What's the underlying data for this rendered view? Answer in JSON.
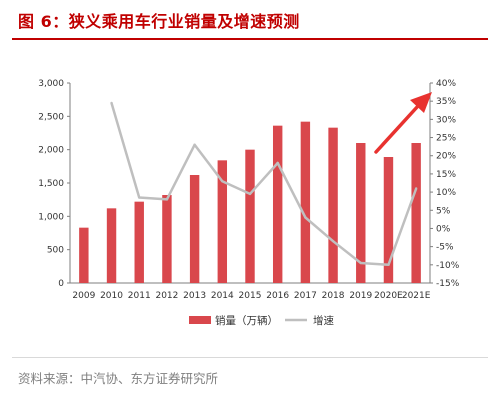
{
  "figure": {
    "title": "图 6：狭义乘用车行业销量及增速预测",
    "source": "资料来源：中汽协、东方证券研究所"
  },
  "colors": {
    "title": "#c00000",
    "bar": "#d9474c",
    "line": "#bfbfbf",
    "arrow": "#e8322f"
  },
  "chart_data": {
    "type": "bar",
    "categories": [
      "2009",
      "2010",
      "2011",
      "2012",
      "2013",
      "2014",
      "2015",
      "2016",
      "2017",
      "2018",
      "2019",
      "2020E",
      "2021E"
    ],
    "series": [
      {
        "name": "销量（万辆）",
        "kind": "bar",
        "axis": "left",
        "values": [
          830,
          1120,
          1220,
          1320,
          1620,
          1840,
          2000,
          2360,
          2420,
          2330,
          2100,
          1890,
          2100
        ]
      },
      {
        "name": "增速",
        "kind": "line",
        "axis": "right",
        "unit": "%",
        "values": [
          null,
          34.5,
          8.5,
          8.0,
          23.0,
          13.0,
          9.5,
          18.0,
          3.0,
          -3.5,
          -9.5,
          -10.0,
          11.0
        ]
      }
    ],
    "y_left": {
      "ylim": [
        0,
        3000
      ],
      "ticks": [
        "0",
        "500",
        "1,000",
        "1,500",
        "2,000",
        "2,500",
        "3,000"
      ]
    },
    "y_right": {
      "ylim": [
        -15,
        40
      ],
      "ticks": [
        "-15%",
        "-10%",
        "-5%",
        "0%",
        "5%",
        "10%",
        "15%",
        "20%",
        "25%",
        "30%",
        "35%",
        "40%"
      ]
    },
    "legend_position": "bottom",
    "annotations": [
      "upward-trend-arrow"
    ]
  }
}
